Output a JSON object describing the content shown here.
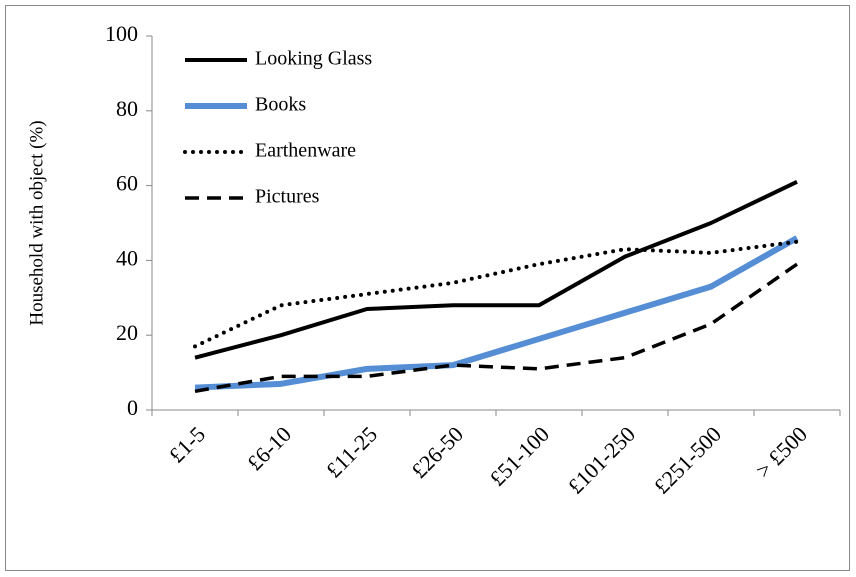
{
  "chart_data": {
    "type": "line",
    "y_label": "Household with object (%)",
    "categories": [
      "£1-5",
      "£6-10",
      "£11-25",
      "£26-50",
      "£51-100",
      "£101-250",
      "£251-500",
      "> £500"
    ],
    "series": [
      {
        "name": "Looking Glass",
        "color": "#000000",
        "style": "solid",
        "values": [
          14,
          20,
          27,
          28,
          28,
          41,
          50,
          61
        ]
      },
      {
        "name": "Books",
        "color": "#558ed5",
        "style": "solid-thick",
        "values": [
          6,
          7,
          11,
          12,
          19,
          26,
          33,
          46
        ]
      },
      {
        "name": "Earthenware",
        "color": "#000000",
        "style": "dotted",
        "values": [
          17,
          28,
          31,
          34,
          39,
          43,
          42,
          45
        ]
      },
      {
        "name": "Pictures",
        "color": "#000000",
        "style": "dashed",
        "values": [
          5,
          9,
          9,
          12,
          11,
          14,
          23,
          39
        ]
      }
    ],
    "ylim": [
      0,
      100
    ],
    "yticks": [
      0,
      20,
      40,
      60,
      80,
      100
    ],
    "grid": false,
    "legend": "top-left"
  }
}
